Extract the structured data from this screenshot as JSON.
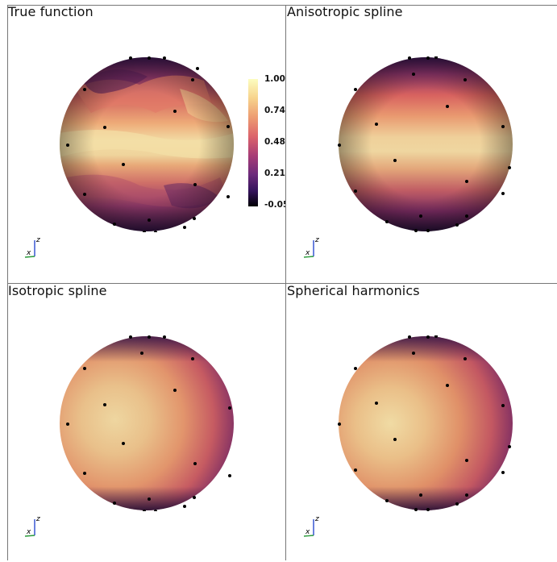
{
  "panels": [
    {
      "title": "True function"
    },
    {
      "title": "Anisotropic spline"
    },
    {
      "title": "Isotropic spline"
    },
    {
      "title": "Spherical harmonics"
    }
  ],
  "colorbar": {
    "ticks": [
      "1.00",
      "0.74",
      "0.48",
      "0.21",
      "-0.05"
    ],
    "colormap": [
      "#fcfdbf",
      "#f6d08a",
      "#ea9a72",
      "#d7636b",
      "#a53d75",
      "#6f2a7a",
      "#35135c",
      "#000004"
    ]
  },
  "axes": {
    "x": "x",
    "z": "z"
  },
  "colors": {
    "sphere_light": "#f0e0a8",
    "sphere_mid": "#e0905e",
    "sphere_dark": "#2d1440",
    "points": "#000000"
  }
}
